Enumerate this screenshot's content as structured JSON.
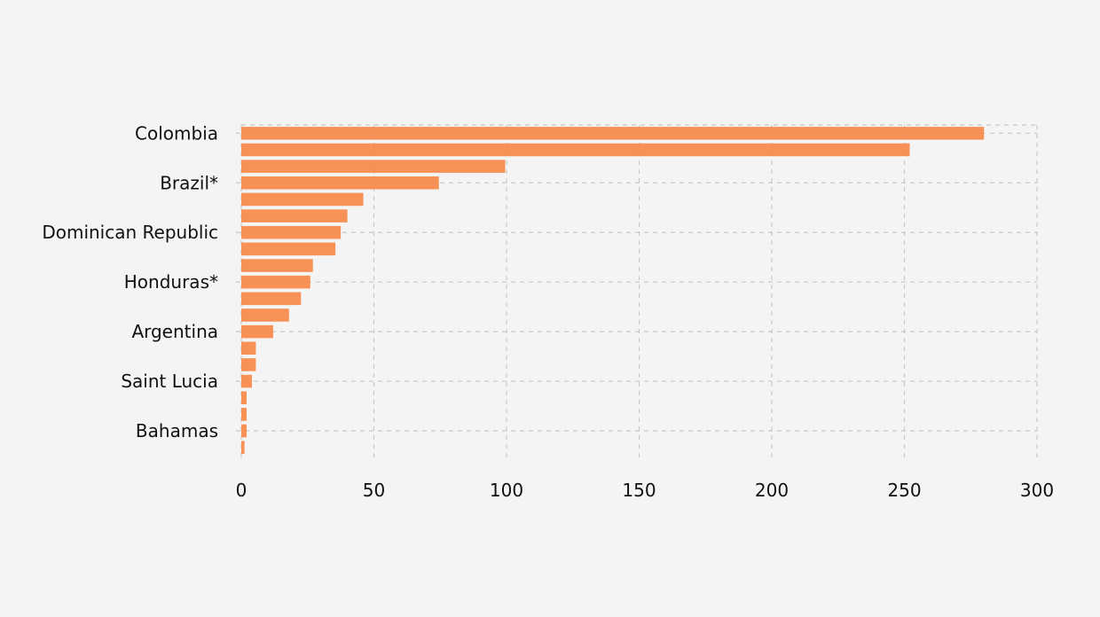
{
  "chart_data": {
    "type": "bar",
    "orientation": "horizontal",
    "bar_color": "#f78b4d",
    "grid": true,
    "xlim": [
      0,
      300
    ],
    "x_ticks": [
      0,
      50,
      100,
      150,
      200,
      250,
      300
    ],
    "x_tick_labels": [
      "0",
      "50",
      "100",
      "150",
      "200",
      "250",
      "300"
    ],
    "labeled_rows": [
      {
        "row": 0,
        "label": "Colombia"
      },
      {
        "row": 3,
        "label": "Brazil*"
      },
      {
        "row": 6,
        "label": "Dominican Republic"
      },
      {
        "row": 9,
        "label": "Honduras*"
      },
      {
        "row": 12,
        "label": "Argentina"
      },
      {
        "row": 15,
        "label": "Saint Lucia"
      },
      {
        "row": 18,
        "label": "Bahamas"
      }
    ],
    "values": [
      280,
      252,
      99.5,
      74.5,
      46,
      40,
      37.5,
      35.5,
      27,
      26,
      22.5,
      18,
      12,
      5.5,
      5.5,
      4,
      2,
      2,
      2,
      1.2
    ]
  }
}
